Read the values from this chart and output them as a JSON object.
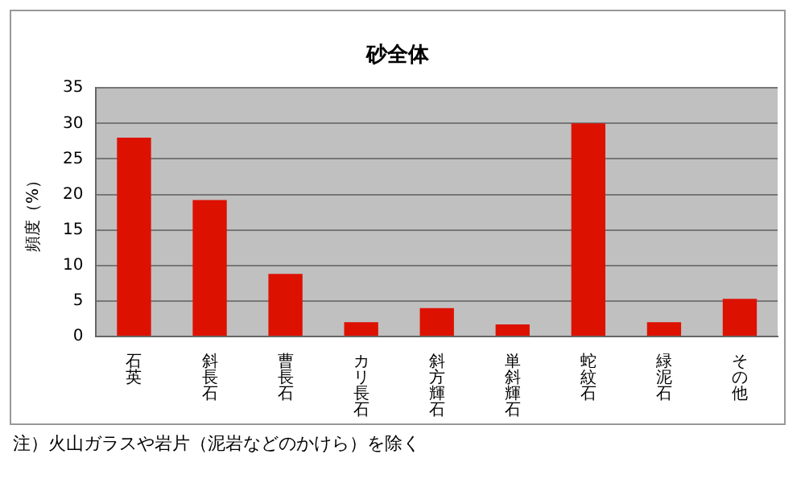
{
  "chart_data": {
    "type": "bar",
    "title": "砂全体",
    "ylabel": "頻度（%）",
    "categories": [
      "石英",
      "斜長石",
      "曹長石",
      "カリ長石",
      "斜方輝石",
      "単斜輝石",
      "蛇紋石",
      "緑泥石",
      "その他"
    ],
    "values": [
      28,
      19.2,
      8.8,
      2,
      4,
      1.7,
      30,
      2,
      5.3
    ],
    "color": "#dd1100",
    "ylim": [
      0,
      35
    ],
    "yticks": [
      0,
      5,
      10,
      15,
      20,
      25,
      30,
      35
    ],
    "grid": "y",
    "annotations": [
      "注）火山ガラスや岩片（泥岩などのかけら）を除く"
    ]
  }
}
